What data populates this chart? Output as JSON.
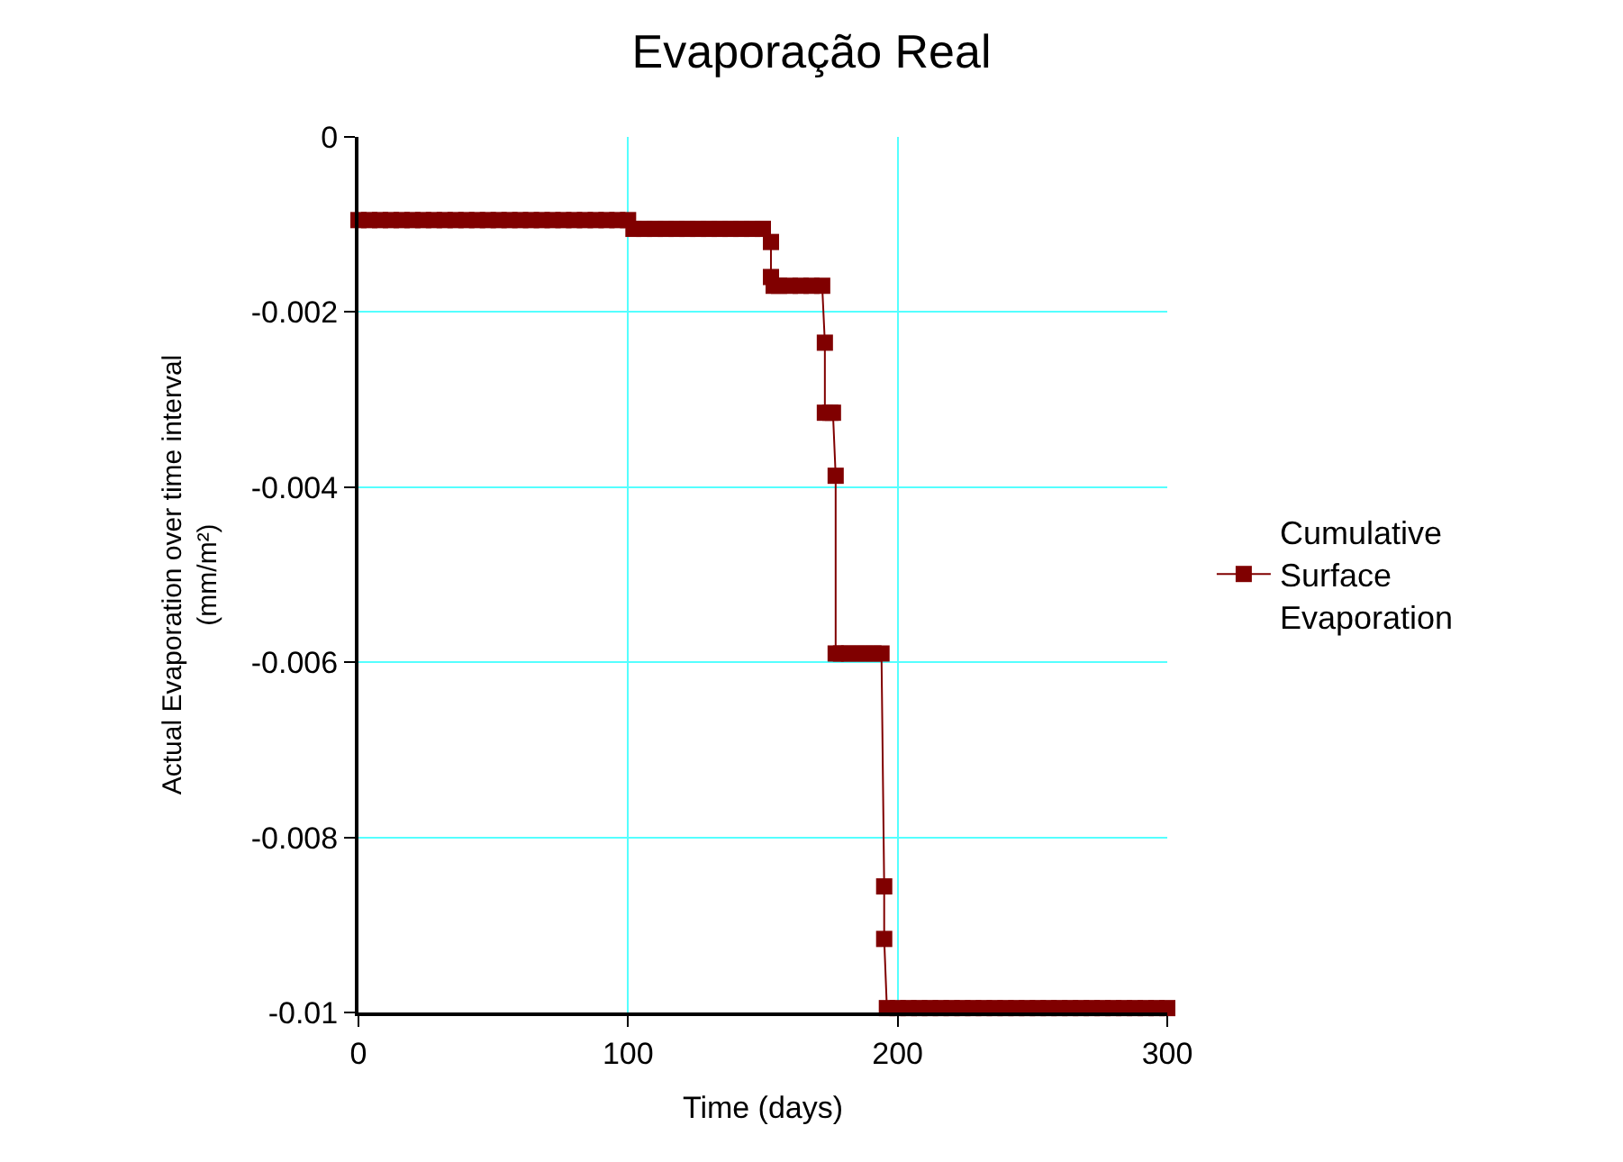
{
  "chart_data": {
    "type": "line",
    "title": "Evaporação Real",
    "xlabel": "Time (days)",
    "ylabel": "Actual Evaporation over time interval\n(mm/m²)",
    "series": [
      {
        "name": "Cumulative\nSurface\nEvaporation",
        "color": "#800000",
        "x": [
          0,
          4,
          8,
          12,
          16,
          20,
          24,
          28,
          32,
          36,
          40,
          44,
          48,
          52,
          56,
          60,
          64,
          68,
          72,
          76,
          80,
          84,
          88,
          92,
          96,
          100,
          102,
          106,
          110,
          114,
          118,
          122,
          126,
          130,
          134,
          138,
          142,
          146,
          150,
          153,
          153,
          154,
          156,
          160,
          164,
          168,
          172,
          173,
          173,
          175,
          176,
          177,
          177,
          179,
          182,
          185,
          188,
          191,
          194,
          195,
          195,
          196,
          200,
          204,
          208,
          212,
          216,
          220,
          224,
          228,
          232,
          236,
          240,
          244,
          248,
          252,
          256,
          260,
          264,
          268,
          272,
          276,
          280,
          284,
          288,
          292,
          296,
          300
        ],
        "values": [
          -0.00095,
          -0.00095,
          -0.00095,
          -0.00095,
          -0.00095,
          -0.00095,
          -0.00095,
          -0.00095,
          -0.00095,
          -0.00095,
          -0.00095,
          -0.00095,
          -0.00095,
          -0.00095,
          -0.00095,
          -0.00095,
          -0.00095,
          -0.00095,
          -0.00095,
          -0.00095,
          -0.00095,
          -0.00095,
          -0.00095,
          -0.00095,
          -0.00095,
          -0.00095,
          -0.00105,
          -0.00105,
          -0.00105,
          -0.00105,
          -0.00105,
          -0.00105,
          -0.00105,
          -0.00105,
          -0.00105,
          -0.00105,
          -0.00105,
          -0.00105,
          -0.00105,
          -0.0012,
          -0.0016,
          -0.0017,
          -0.0017,
          -0.0017,
          -0.0017,
          -0.0017,
          -0.0017,
          -0.00235,
          -0.00315,
          -0.00315,
          -0.00315,
          -0.00387,
          -0.0059,
          -0.0059,
          -0.0059,
          -0.0059,
          -0.0059,
          -0.0059,
          -0.0059,
          -0.00856,
          -0.00916,
          -0.00995,
          -0.00995,
          -0.00995,
          -0.00995,
          -0.00995,
          -0.00995,
          -0.00995,
          -0.00995,
          -0.00995,
          -0.00995,
          -0.00995,
          -0.00995,
          -0.00995,
          -0.00995,
          -0.00995,
          -0.00995,
          -0.00995,
          -0.00995,
          -0.00995,
          -0.00995,
          -0.00995,
          -0.00995,
          -0.00995,
          -0.00995,
          -0.00995,
          -0.00995,
          -0.00995
        ]
      }
    ],
    "xlim": [
      0,
      300
    ],
    "xticks": [
      0,
      100,
      200,
      300
    ],
    "ylim": [
      -0.01,
      0
    ],
    "yticks": [
      0,
      -0.002,
      -0.004,
      -0.006,
      -0.008,
      -0.01
    ],
    "grid": true,
    "legend": "right",
    "marker": "square",
    "line_style": "solid"
  }
}
